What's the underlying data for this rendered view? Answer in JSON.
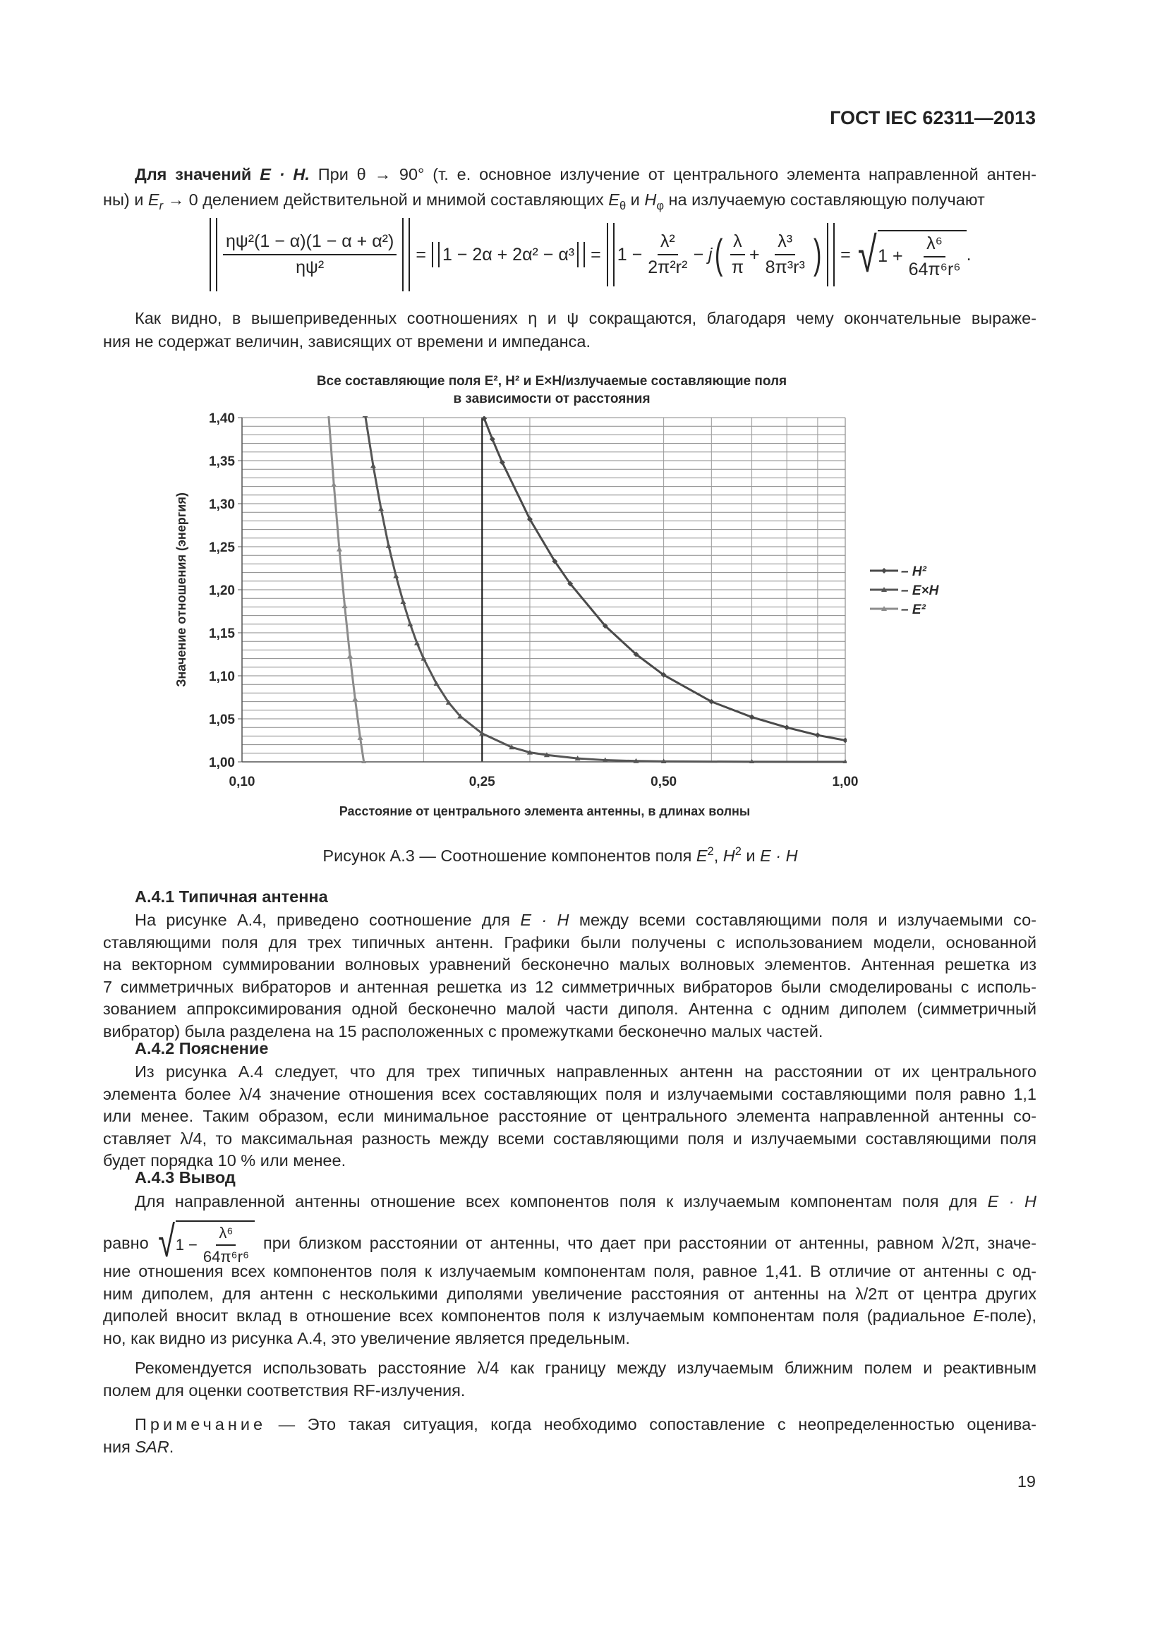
{
  "header": {
    "doc_id": "ГОСТ IEC 62311—2013"
  },
  "p1": [
    [
      [
        "Для значений ",
        "b"
      ],
      [
        "E · H.",
        "bi"
      ],
      [
        " При θ → 90° (т. е. основное излучение от центрального элемента направленной антен-",
        ""
      ]
    ],
    [
      [
        "ны) и ",
        ""
      ],
      [
        "E",
        "i"
      ],
      [
        "r",
        "i_"
      ],
      [
        " → 0 делением действительной и мнимой составляющих ",
        ""
      ],
      [
        "E",
        "i"
      ],
      [
        "θ",
        "_"
      ],
      [
        " и ",
        ""
      ],
      [
        "H",
        "i"
      ],
      [
        "φ",
        "_"
      ],
      [
        " на излучаемую составляющую получают",
        ""
      ]
    ]
  ],
  "formula1": {
    "num1": "ηψ²(1 − α)(1 − α + α²)",
    "den1": "ηψ²",
    "eq": "=",
    "expr2": "1 − 2α + 2α² − α³",
    "one_minus": "1 −",
    "num3": "λ²",
    "den3": "2π²r²",
    "minus_j": "− j",
    "num4": "λ",
    "den4": "π",
    "plus": "+",
    "num5": "λ³",
    "den5": "8π³r³",
    "one_plus": "1 +",
    "num6": "λ⁶",
    "den6": "64π⁶r⁶",
    "dot": "."
  },
  "p2": [
    [
      [
        "Как видно, в вышеприведенных соотношениях η и ψ сокращаются, благодаря чему окончательные выраже-",
        ""
      ]
    ],
    [
      [
        "ния не содержат величин, зависящих от времени и импеданса.",
        ""
      ]
    ]
  ],
  "chart_data": {
    "type": "line",
    "title_line1": "Все составляющие поля E², H² и E×H/излучаемые составляющие поля",
    "title_line2": "в зависимости от расстояния",
    "xlabel": "Расстояние от центрального элемента антенны, в длинах волны",
    "ylabel": "Значение отношения (энергия)",
    "x_scale": "log",
    "xlim": [
      0.1,
      1.0
    ],
    "ylim": [
      1.0,
      1.4
    ],
    "x_ticks": [
      {
        "v": 0.1,
        "label": "0,10"
      },
      {
        "v": 0.25,
        "label": "0,25"
      },
      {
        "v": 0.5,
        "label": "0,50"
      },
      {
        "v": 1.0,
        "label": "1,00"
      }
    ],
    "y_ticks": [
      {
        "v": 1.0,
        "label": "1,00"
      },
      {
        "v": 1.05,
        "label": "1,05"
      },
      {
        "v": 1.1,
        "label": "1,10"
      },
      {
        "v": 1.15,
        "label": "1,15"
      },
      {
        "v": 1.2,
        "label": "1,20"
      },
      {
        "v": 1.25,
        "label": "1,25"
      },
      {
        "v": 1.3,
        "label": "1,30"
      },
      {
        "v": 1.35,
        "label": "1,35"
      },
      {
        "v": 1.4,
        "label": "1,40"
      }
    ],
    "grid": {
      "horizontal_step": 0.01,
      "vertical_at": [
        0.2,
        0.3,
        0.5,
        0.6,
        0.7,
        0.8,
        0.9
      ],
      "reference_line_x": 0.25
    },
    "legend_position": "right",
    "series": [
      {
        "name": "– H²",
        "color": "#4a4a4a",
        "marker": "diamond",
        "x": [
          0.252,
          0.26,
          0.27,
          0.3,
          0.33,
          0.35,
          0.4,
          0.45,
          0.5,
          0.6,
          0.7,
          0.8,
          0.9,
          1.0
        ],
        "y": [
          1.399,
          1.375,
          1.348,
          1.282,
          1.233,
          1.207,
          1.158,
          1.125,
          1.101,
          1.07,
          1.052,
          1.04,
          1.031,
          1.025
        ]
      },
      {
        "name": "– E×H",
        "color": "#555555",
        "marker": "triangle",
        "x": [
          0.16,
          0.165,
          0.17,
          0.175,
          0.18,
          0.185,
          0.19,
          0.195,
          0.2,
          0.21,
          0.22,
          0.23,
          0.25,
          0.28,
          0.3,
          0.32,
          0.36,
          0.4,
          0.45,
          0.5,
          0.7,
          1.0
        ],
        "y": [
          1.403,
          1.344,
          1.294,
          1.251,
          1.216,
          1.186,
          1.16,
          1.138,
          1.12,
          1.091,
          1.069,
          1.053,
          1.033,
          1.017,
          1.011,
          1.008,
          1.004,
          1.002,
          1.001,
          1.0005,
          1.0001,
          1.0
        ]
      },
      {
        "name": "– E²",
        "color": "#8c8c8c",
        "marker": "triangle",
        "x": [
          0.139,
          0.142,
          0.145,
          0.148,
          0.151,
          0.154,
          0.157,
          0.1592
        ],
        "y": [
          1.408,
          1.322,
          1.247,
          1.181,
          1.123,
          1.073,
          1.028,
          1.0
        ]
      }
    ]
  },
  "caption": [
    [
      "Рисунок А.3 — Соотношение компонентов поля ",
      ""
    ],
    [
      "E",
      "i"
    ],
    [
      "2",
      "^"
    ],
    [
      ", ",
      ""
    ],
    [
      "H",
      "i"
    ],
    [
      "2",
      "^"
    ],
    [
      " и ",
      ""
    ],
    [
      "E · H",
      "i"
    ]
  ],
  "a41_heading": "А.4.1 Типичная антенна",
  "p3": [
    [
      [
        "На рисунке А.4, приведено соотношение для ",
        ""
      ],
      [
        "E · H",
        "i"
      ],
      [
        " между всеми составляющими поля и излучаемыми со-",
        ""
      ]
    ],
    [
      [
        "ставляющими поля для трех типичных антенн. Графики были получены с использованием модели, основанной",
        ""
      ]
    ],
    [
      [
        "на векторном суммировании волновых уравнений бесконечно малых волновых элементов. Антенная решетка из",
        ""
      ]
    ],
    [
      [
        "7 симметричных вибраторов и антенная решетка из 12 симметричных вибраторов были смоделированы с исполь-",
        ""
      ]
    ],
    [
      [
        "зованием аппроксимирования одной бесконечно малой части диполя. Антенна с одним диполем (симметричный",
        ""
      ]
    ],
    [
      [
        "вибратор) была разделена на 15 расположенных с промежутками бесконечно малых частей.",
        ""
      ]
    ]
  ],
  "a42_heading": "А.4.2 Пояснение",
  "p4": [
    [
      [
        "Из рисунка А.4 следует, что для трех типичных направленных антенн на расстоянии от их центрального",
        ""
      ]
    ],
    [
      [
        "элемента более λ/4 значение отношения всех составляющих поля и излучаемыми составляющими поля равно 1,1",
        ""
      ]
    ],
    [
      [
        "или менее. Таким образом, если минимальное расстояние от центрального элемента направленной антенны со-",
        ""
      ]
    ],
    [
      [
        "ставляет λ/4, то максимальная разность между всеми составляющими поля и излучаемыми составляющими поля",
        ""
      ]
    ],
    [
      [
        "будет порядка 10 % или менее.",
        ""
      ]
    ]
  ],
  "a43_heading": "А.4.3 Вывод",
  "p5": [
    [
      [
        "Для направленной антенны отношение всех компонентов поля к излучаемым компонентам поля для ",
        ""
      ],
      [
        "E · H",
        "i"
      ]
    ]
  ],
  "formula2": {
    "before": "равно",
    "one_minus": "1 −",
    "num": "λ⁶",
    "den": "64π⁶r⁶",
    "after": "при близком расстоянии от антенны, что дает при расстоянии от антенны, равном λ/2π, значе-"
  },
  "p6": [
    [
      [
        "ние отношения всех компонентов поля к излучаемым компонентам поля, равное 1,41. В отличие от антенны с од-",
        ""
      ]
    ],
    [
      [
        "ним диполем, для антенн с несколькими диполями увеличение расстояния от антенны на λ/2π от центра других",
        ""
      ]
    ],
    [
      [
        "диполей вносит вклад в отношение всех компонентов поля к излучаемым компонентам поля (радиальное ",
        ""
      ],
      [
        "E",
        "i"
      ],
      [
        "-поле),",
        ""
      ]
    ],
    [
      [
        "но, как видно из рисунка А.4, это увеличение является предельным.",
        ""
      ]
    ]
  ],
  "p7": [
    [
      [
        "Рекомендуется использовать расстояние λ/4 как границу между излучаемым ближним полем и реактивным",
        ""
      ]
    ],
    [
      [
        "полем для оценки соответствия RF-излучения.",
        ""
      ]
    ]
  ],
  "note": [
    [
      [
        "Примечание",
        "p"
      ],
      [
        " — Это такая ситуация, когда необходимо сопоставление с неопределенностью оценива-",
        ""
      ]
    ],
    [
      [
        "ния ",
        ""
      ],
      [
        "SAR",
        "i"
      ],
      [
        ".",
        ""
      ]
    ]
  ],
  "page_number": "19"
}
